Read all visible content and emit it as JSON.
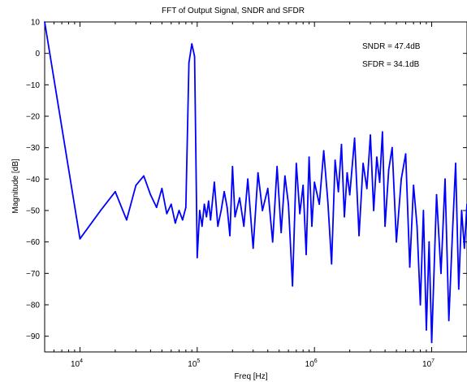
{
  "chart_data": {
    "type": "line",
    "title": "FFT of Output Signal, SNDR and SFDR",
    "xlabel": "Freq [Hz]",
    "ylabel": "Magnitude [dB]",
    "xscale": "log",
    "xlim": [
      5000,
      20000000
    ],
    "ylim": [
      -95,
      10
    ],
    "grid": false,
    "line_color": "#0000ff",
    "y_ticks": [
      {
        "value": 10,
        "label": "10"
      },
      {
        "value": 0,
        "label": "0"
      },
      {
        "value": -10,
        "label": "−10"
      },
      {
        "value": -20,
        "label": "−20"
      },
      {
        "value": -30,
        "label": "−30"
      },
      {
        "value": -40,
        "label": "−40"
      },
      {
        "value": -50,
        "label": "−50"
      },
      {
        "value": -60,
        "label": "−60"
      },
      {
        "value": -70,
        "label": "−70"
      },
      {
        "value": -80,
        "label": "−80"
      },
      {
        "value": -90,
        "label": "−90"
      }
    ],
    "x_ticks": [
      {
        "value": 10000,
        "base": "10",
        "exp": "4"
      },
      {
        "value": 100000,
        "base": "10",
        "exp": "5"
      },
      {
        "value": 1000000,
        "base": "10",
        "exp": "6"
      },
      {
        "value": 10000000,
        "base": "10",
        "exp": "7"
      }
    ],
    "annotations": [
      "SNDR = 47.4dB",
      "SFDR = 34.1dB"
    ],
    "series": [
      {
        "x": [
          5000,
          10000,
          15000,
          20000,
          25000,
          30000,
          35000,
          40000,
          45000,
          50000,
          55000,
          60000,
          65000,
          70000,
          75000,
          80000,
          85000,
          90000,
          95000,
          100000,
          105000,
          110000,
          115000,
          120000,
          125000,
          130000,
          140000,
          150000,
          160000,
          170000,
          180000,
          190000,
          200000,
          210000,
          230000,
          250000,
          270000,
          300000,
          330000,
          360000,
          400000,
          440000,
          480000,
          520000,
          560000,
          600000,
          650000,
          700000,
          750000,
          800000,
          850000,
          900000,
          950000,
          1000000,
          1100000,
          1200000,
          1300000,
          1400000,
          1500000,
          1600000,
          1700000,
          1800000,
          1900000,
          2000000,
          2200000,
          2400000,
          2600000,
          2800000,
          3000000,
          3200000,
          3400000,
          3600000,
          3800000,
          4000000,
          4300000,
          4600000,
          5000000,
          5500000,
          6000000,
          6500000,
          7000000,
          7500000,
          8000000,
          8500000,
          9000000,
          9500000,
          10000000,
          11000000,
          12000000,
          13000000,
          14000000,
          15000000,
          16000000,
          17000000,
          18000000,
          19000000,
          20000000
        ],
        "y": [
          10,
          -59,
          -50,
          -44,
          -53,
          -42,
          -39,
          -45,
          -49,
          -43,
          -51,
          -48,
          -54,
          -50,
          -53,
          -49,
          -3,
          3,
          -1,
          -65,
          -50,
          -55,
          -48,
          -52,
          -47,
          -53,
          -41,
          -55,
          -50,
          -44,
          -49,
          -58,
          -36,
          -52,
          -46,
          -55,
          -40,
          -62,
          -38,
          -50,
          -43,
          -60,
          -36,
          -57,
          -39,
          -48,
          -74,
          -35,
          -51,
          -42,
          -64,
          -33,
          -55,
          -41,
          -48,
          -31,
          -47,
          -67,
          -34,
          -44,
          -29,
          -52,
          -38,
          -45,
          -27,
          -58,
          -35,
          -43,
          -26,
          -50,
          -33,
          -41,
          -25,
          -55,
          -37,
          -30,
          -60,
          -40,
          -32,
          -68,
          -42,
          -55,
          -80,
          -50,
          -88,
          -60,
          -92,
          -45,
          -70,
          -40,
          -85,
          -58,
          -35,
          -75,
          -50,
          -62,
          -48
        ]
      }
    ]
  }
}
